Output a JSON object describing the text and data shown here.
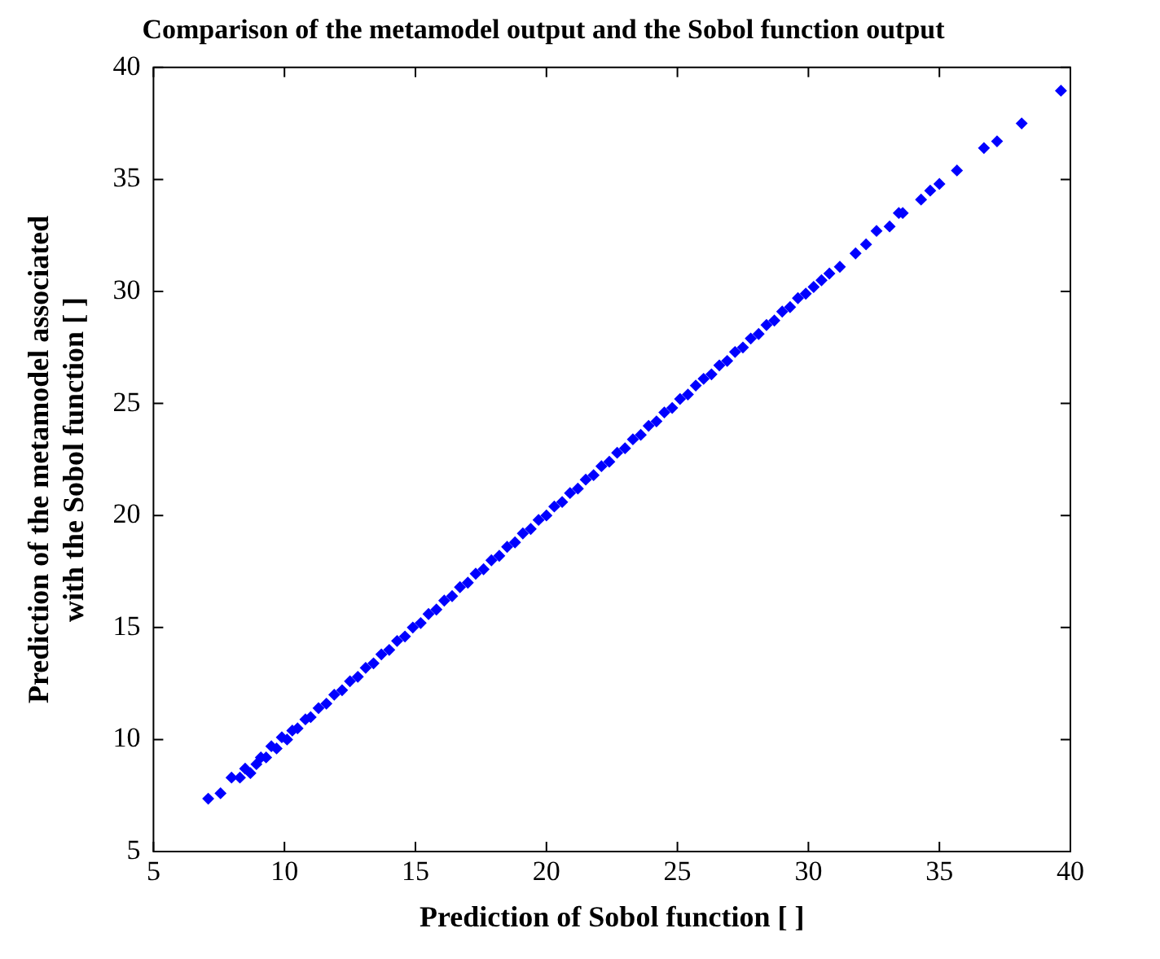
{
  "chart_data": {
    "type": "scatter",
    "title": "Comparison of the metamodel output and the Sobol function output",
    "xlabel": "Prediction of Sobol function [ ]",
    "ylabel": "Prediction of the metamodel associated\nwith the Sobol function [ ]",
    "marker": "diamond",
    "grid": false,
    "xlim": [
      5,
      40
    ],
    "xticks": [
      5,
      10,
      15,
      20,
      25,
      30,
      35,
      40
    ],
    "ylim": [
      5,
      40
    ],
    "yticks": [
      5,
      10,
      15,
      20,
      25,
      30,
      35,
      40
    ],
    "series": [
      {
        "color": "#0000ff",
        "x": [
          7.09,
          7.56,
          7.98,
          8.3,
          8.5,
          8.7,
          8.93,
          9.1,
          9.3,
          9.5,
          9.7,
          9.9,
          10.1,
          10.3,
          10.5,
          10.8,
          11.0,
          11.3,
          11.6,
          11.9,
          12.2,
          12.5,
          12.8,
          13.1,
          13.4,
          13.7,
          14.0,
          14.3,
          14.6,
          14.9,
          15.2,
          15.5,
          15.8,
          16.1,
          16.4,
          16.7,
          17.0,
          17.3,
          17.6,
          17.9,
          18.2,
          18.5,
          18.8,
          19.1,
          19.4,
          19.7,
          20.0,
          20.3,
          20.6,
          20.9,
          21.2,
          21.5,
          21.8,
          22.1,
          22.4,
          22.7,
          23.0,
          23.3,
          23.6,
          23.9,
          24.2,
          24.5,
          24.8,
          25.1,
          25.4,
          25.7,
          26.0,
          26.3,
          26.6,
          26.9,
          27.2,
          27.5,
          27.8,
          28.1,
          28.4,
          28.7,
          29.0,
          29.3,
          29.6,
          29.9,
          30.2,
          30.5,
          30.8,
          31.2,
          31.8,
          32.2,
          32.6,
          33.1,
          33.45,
          33.6,
          34.3,
          34.65,
          35.0,
          35.67,
          36.7,
          37.2,
          38.14,
          39.64
        ],
        "values": [
          7.36,
          7.6,
          8.3,
          8.3,
          8.7,
          8.5,
          8.9,
          9.2,
          9.2,
          9.7,
          9.6,
          10.1,
          10.0,
          10.4,
          10.5,
          10.9,
          11.0,
          11.4,
          11.6,
          12.0,
          12.2,
          12.6,
          12.8,
          13.2,
          13.4,
          13.8,
          14.0,
          14.4,
          14.6,
          15.0,
          15.2,
          15.6,
          15.8,
          16.2,
          16.4,
          16.8,
          17.0,
          17.4,
          17.6,
          18.0,
          18.2,
          18.6,
          18.8,
          19.2,
          19.4,
          19.8,
          20.0,
          20.4,
          20.6,
          21.0,
          21.2,
          21.6,
          21.8,
          22.2,
          22.4,
          22.8,
          23.0,
          23.4,
          23.6,
          24.0,
          24.2,
          24.6,
          24.8,
          25.2,
          25.4,
          25.8,
          26.1,
          26.3,
          26.7,
          26.9,
          27.3,
          27.5,
          27.9,
          28.1,
          28.5,
          28.7,
          29.1,
          29.3,
          29.7,
          29.9,
          30.2,
          30.5,
          30.8,
          31.1,
          31.7,
          32.1,
          32.7,
          32.9,
          33.5,
          33.5,
          34.1,
          34.5,
          34.8,
          35.4,
          36.4,
          36.7,
          37.5,
          38.96
        ]
      }
    ]
  }
}
